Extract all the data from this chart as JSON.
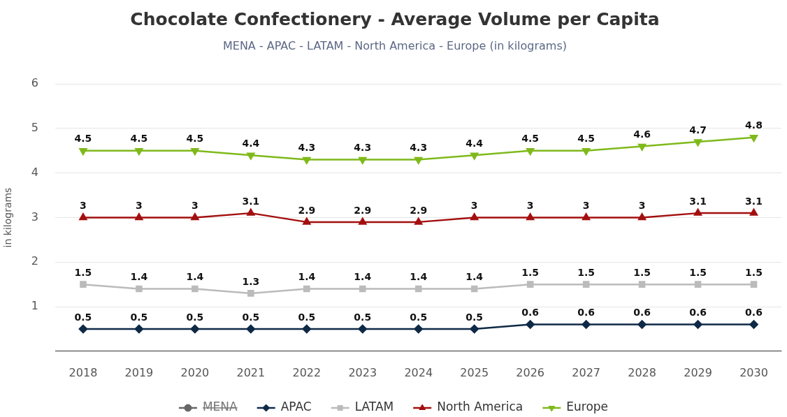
{
  "chart_data": {
    "type": "line",
    "title": "Chocolate Confectionery - Average Volume per Capita",
    "subtitle": "MENA - APAC - LATAM - North America - Europe (in kilograms)",
    "ylabel": "in kilograms",
    "categories": [
      "2018",
      "2019",
      "2020",
      "2021",
      "2022",
      "2023",
      "2024",
      "2025",
      "2026",
      "2027",
      "2028",
      "2029",
      "2030"
    ],
    "series": [
      {
        "name": "MENA",
        "color": "#666666",
        "marker": "circle",
        "values": [
          null,
          null,
          null,
          null,
          null,
          null,
          null,
          null,
          null,
          null,
          null,
          null,
          null
        ]
      },
      {
        "name": "APAC",
        "color": "#0f2a47",
        "marker": "diamond",
        "values": [
          0.5,
          0.5,
          0.5,
          0.5,
          0.5,
          0.5,
          0.5,
          0.5,
          0.6,
          0.6,
          0.6,
          0.6,
          0.6
        ]
      },
      {
        "name": "LATAM",
        "color": "#bbbbbb",
        "marker": "square",
        "values": [
          1.5,
          1.4,
          1.4,
          1.3,
          1.4,
          1.4,
          1.4,
          1.4,
          1.5,
          1.5,
          1.5,
          1.5,
          1.5
        ]
      },
      {
        "name": "North America",
        "color": "#a30f0f",
        "marker": "triangle",
        "values": [
          3,
          3,
          3,
          3.1,
          2.9,
          2.9,
          2.9,
          3,
          3,
          3,
          3,
          3.1,
          3.1
        ]
      },
      {
        "name": "Europe",
        "color": "#7fb91b",
        "marker": "triangle-down",
        "values": [
          4.5,
          4.5,
          4.5,
          4.4,
          4.3,
          4.3,
          4.3,
          4.4,
          4.5,
          4.5,
          4.6,
          4.7,
          4.8
        ]
      }
    ],
    "ylim": [
      0,
      6
    ],
    "yticks": [
      {
        "value": 0,
        "label": null
      },
      1,
      2,
      3,
      4,
      5,
      6
    ],
    "grid": "y",
    "legend": "bottom",
    "data_labels": true
  }
}
